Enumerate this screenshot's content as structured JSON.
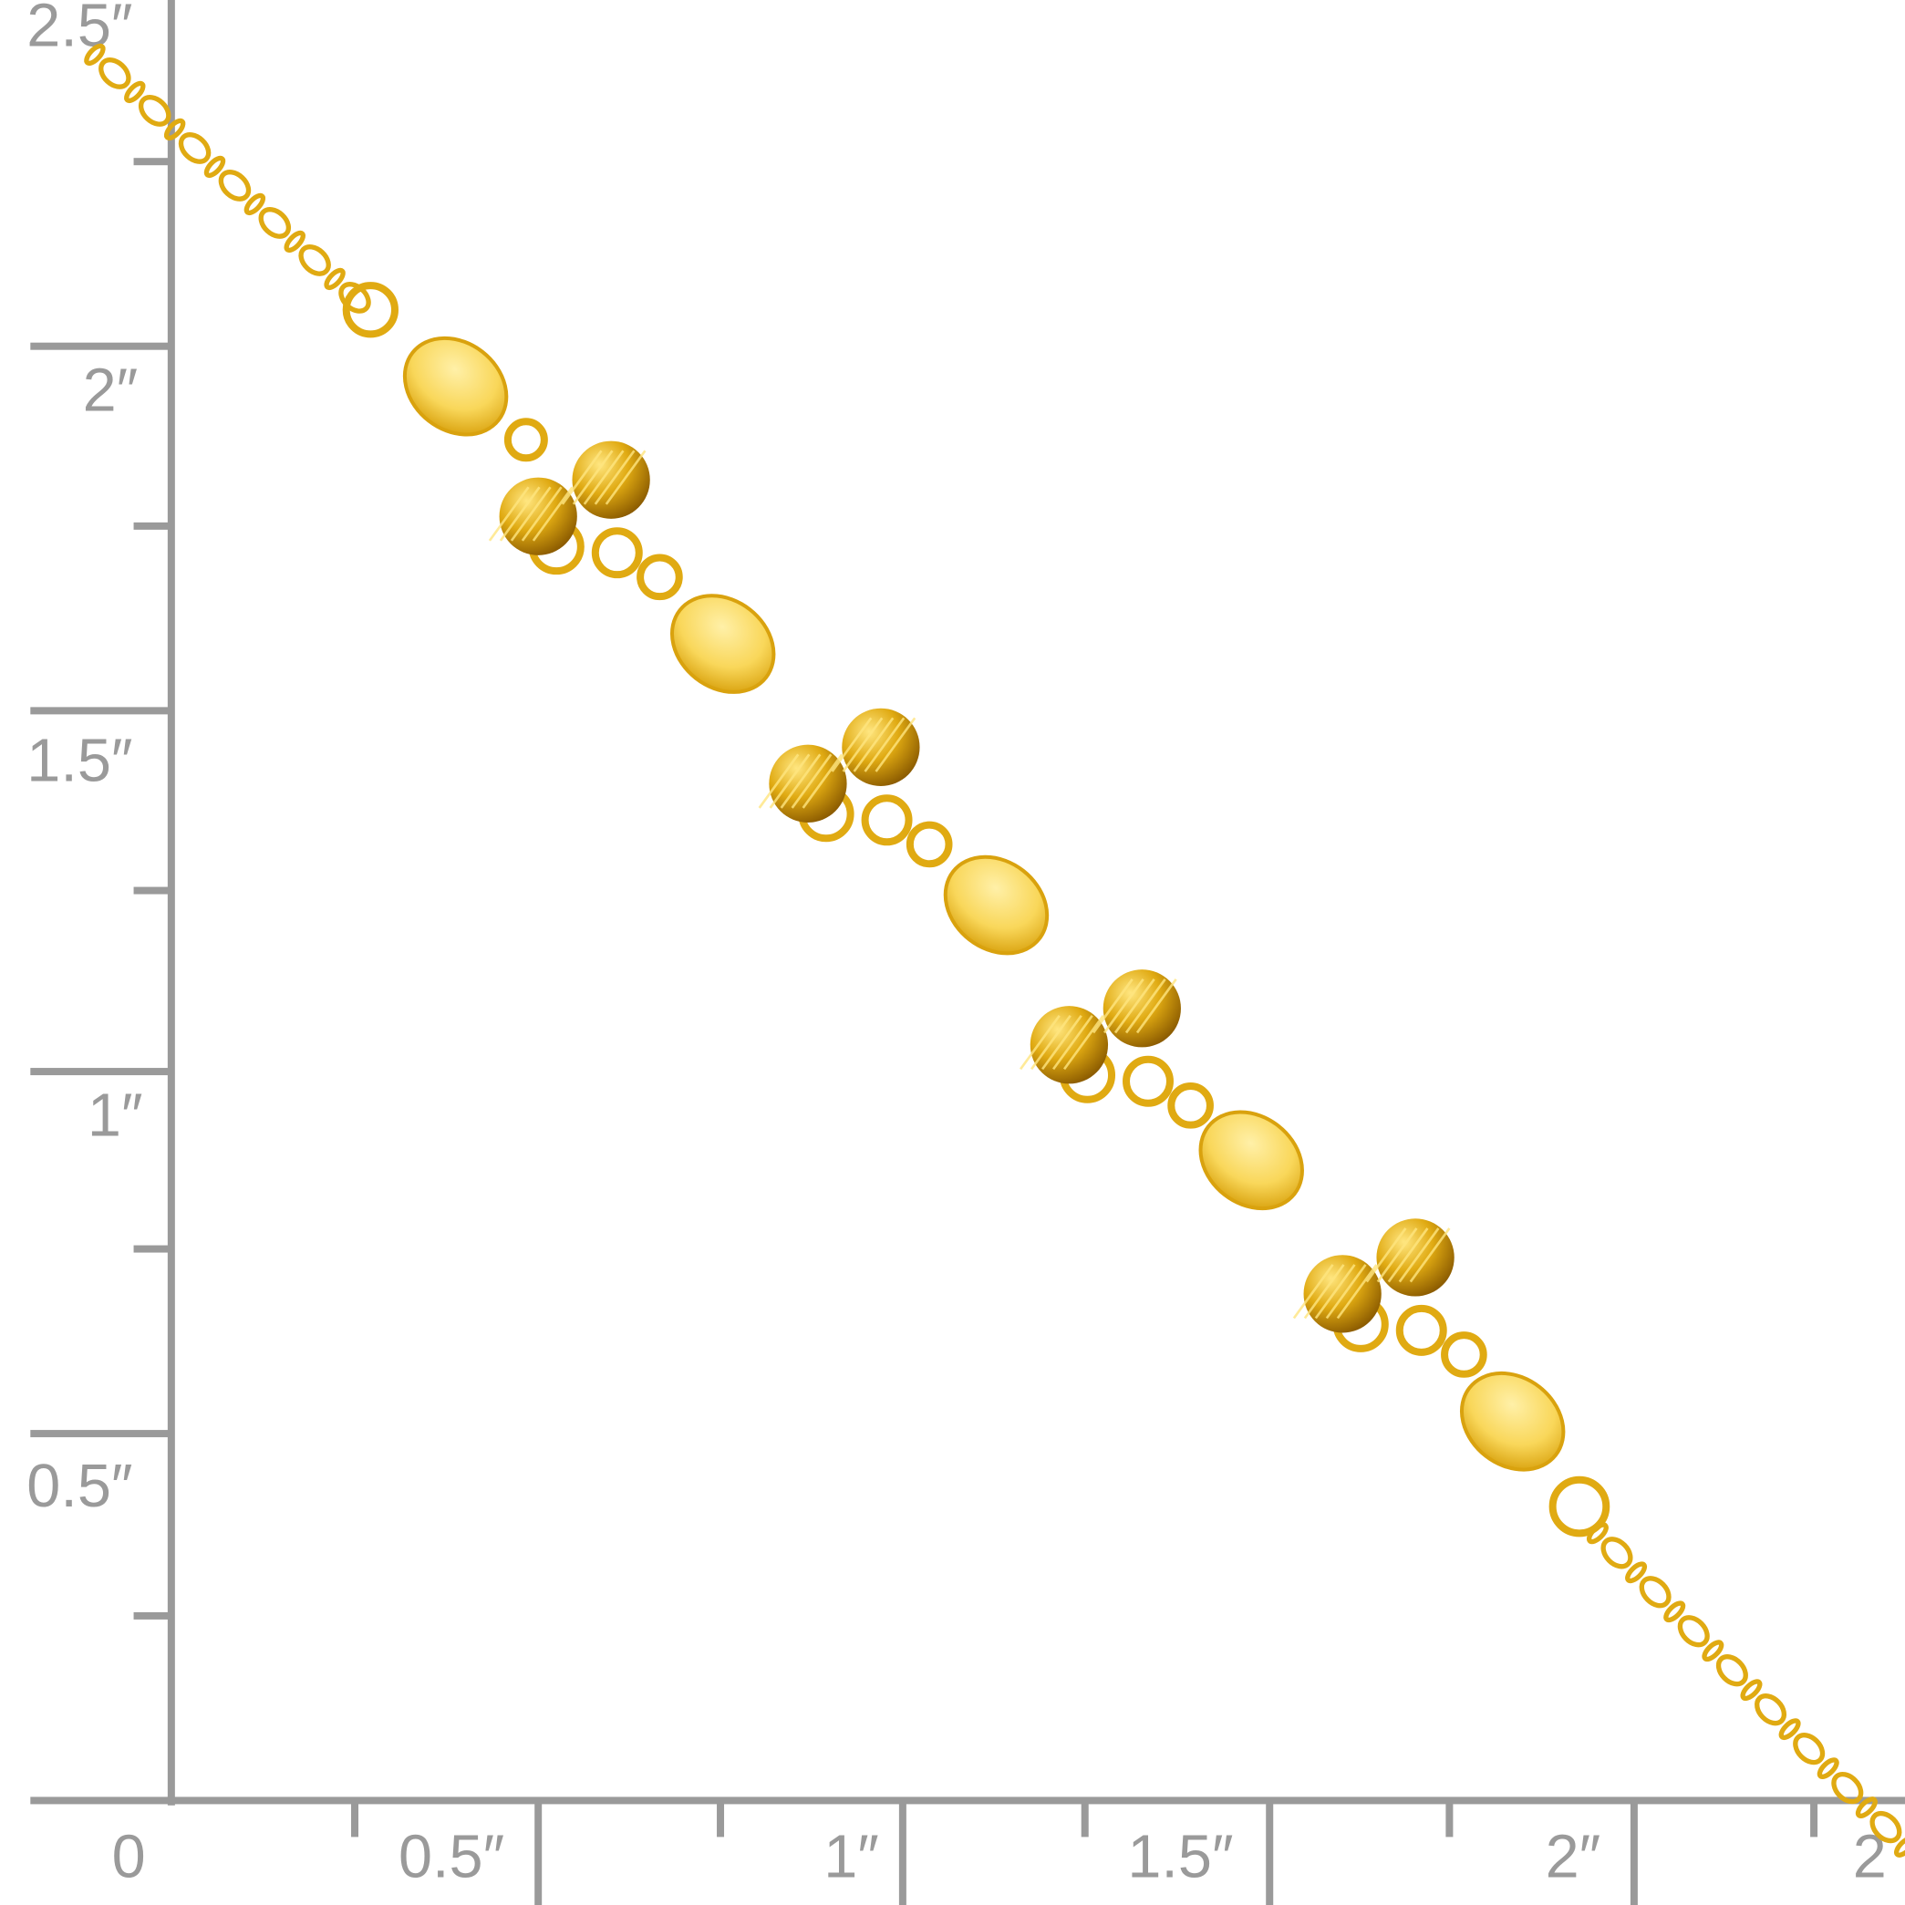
{
  "ruler": {
    "color": "#9a9a9a",
    "vertical_labels": [
      "2.5″",
      "2″",
      "1.5″",
      "1″",
      "0.5″"
    ],
    "horizontal_labels": [
      "0",
      "0.5″",
      "1″",
      "1.5″",
      "2″",
      "2"
    ]
  },
  "product": {
    "type": "gold bracelet with flat disc stations and diamond-cut bead clusters",
    "metal_color": "#e0aa12",
    "highlight_color": "#ffe680",
    "shadow_color": "#b07a00"
  }
}
